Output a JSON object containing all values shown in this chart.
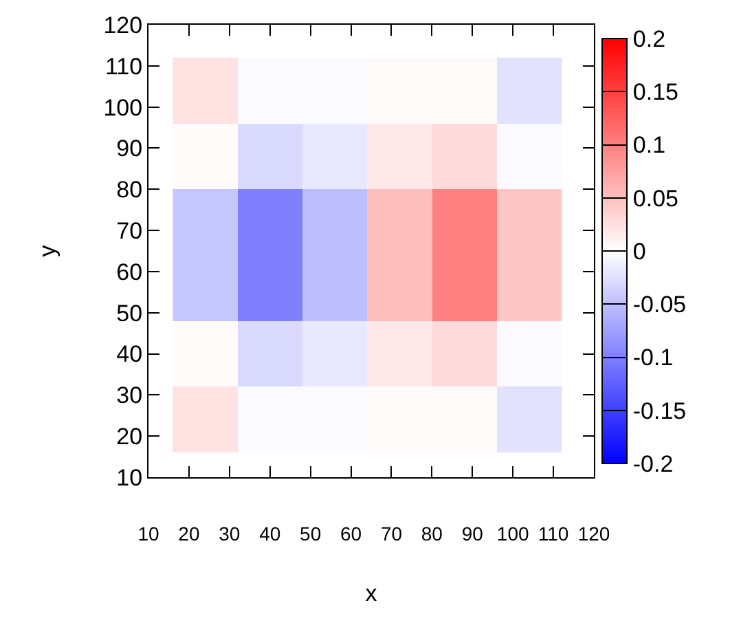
{
  "chart_data": {
    "type": "heatmap",
    "xlabel": "x",
    "ylabel": "y",
    "x": [
      24,
      40,
      56,
      72,
      88,
      104
    ],
    "y": [
      104,
      88,
      72,
      56,
      40,
      24
    ],
    "cells": [
      [
        0.023,
        -0.004,
        -0.004,
        0.004,
        0.004,
        -0.023
      ],
      [
        0.003,
        -0.029,
        -0.018,
        0.018,
        0.029,
        -0.004
      ],
      [
        -0.045,
        -0.1,
        -0.051,
        0.051,
        0.1,
        0.045
      ],
      [
        -0.045,
        -0.1,
        -0.051,
        0.051,
        0.1,
        0.045
      ],
      [
        0.003,
        -0.029,
        -0.018,
        0.018,
        0.029,
        -0.004
      ],
      [
        0.023,
        -0.004,
        -0.004,
        0.004,
        0.004,
        -0.023
      ]
    ],
    "xlim": [
      10,
      120
    ],
    "ylim": [
      10,
      120
    ],
    "xticks": [
      10,
      20,
      30,
      40,
      50,
      60,
      70,
      80,
      90,
      100,
      110,
      120
    ],
    "yticks": [
      10,
      20,
      30,
      40,
      50,
      60,
      70,
      80,
      90,
      100,
      110,
      120
    ],
    "clim": [
      -0.2,
      0.2
    ],
    "cticks": [
      -0.2,
      -0.15,
      -0.1,
      -0.05,
      0,
      0.05,
      0.1,
      0.15,
      0.2
    ]
  }
}
